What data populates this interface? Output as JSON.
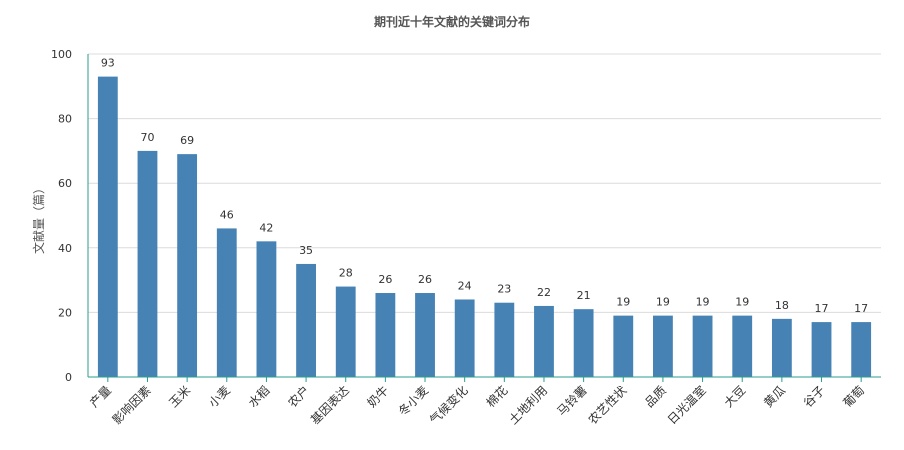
{
  "chart_data": {
    "type": "bar",
    "title": "期刊近十年文献的关键词分布",
    "xlabel": "",
    "ylabel": "文献量（篇）",
    "ylim": [
      0,
      100
    ],
    "yticks": [
      0,
      20,
      40,
      60,
      80,
      100
    ],
    "categories": [
      "产量",
      "影响因素",
      "玉米",
      "小麦",
      "水稻",
      "农户",
      "基因表达",
      "奶牛",
      "冬小麦",
      "气候变化",
      "棉花",
      "土地利用",
      "马铃薯",
      "农艺性状",
      "品质",
      "日光温室",
      "大豆",
      "黄瓜",
      "谷子",
      "葡萄"
    ],
    "values": [
      93,
      70,
      69,
      46,
      42,
      35,
      28,
      26,
      26,
      24,
      23,
      22,
      21,
      19,
      19,
      19,
      19,
      18,
      17,
      17
    ],
    "grid": true,
    "bar_color": "#4682b4",
    "axis_color": "#2a9d8f"
  }
}
